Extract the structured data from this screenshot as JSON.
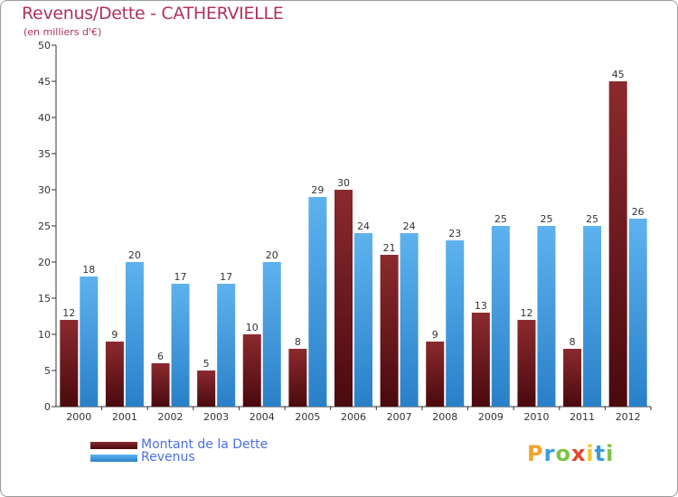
{
  "chart_data": {
    "type": "bar",
    "title": "Revenus/Dette - CATHERVIELLE",
    "subtitle": "(en milliers d'€)",
    "categories": [
      "2000",
      "2001",
      "2002",
      "2003",
      "2004",
      "2005",
      "2006",
      "2007",
      "2008",
      "2009",
      "2010",
      "2011",
      "2012"
    ],
    "series": [
      {
        "name": "Montant de la Dette",
        "color": "#7a1e22",
        "values": [
          12,
          9,
          6,
          5,
          10,
          8,
          30,
          21,
          9,
          13,
          12,
          8,
          45
        ]
      },
      {
        "name": "Revenus",
        "color": "#4ea6e8",
        "values": [
          18,
          20,
          17,
          17,
          20,
          29,
          24,
          24,
          23,
          25,
          25,
          25,
          26
        ]
      }
    ],
    "ylim": [
      0,
      50
    ],
    "yticks": [
      0,
      5,
      10,
      15,
      20,
      25,
      30,
      35,
      40,
      45,
      50
    ],
    "xlabel": "",
    "ylabel": "",
    "grid": false,
    "legend": "bottom-left",
    "data_labels": true
  },
  "logo": {
    "letters": [
      "P",
      "r",
      "o",
      "x",
      "i",
      "t",
      "i"
    ],
    "colors": [
      "#f2a32e",
      "#3a9be0",
      "#7cc243",
      "#e8442f",
      "#f2c72e",
      "#3a9be0",
      "#7cc243"
    ]
  }
}
